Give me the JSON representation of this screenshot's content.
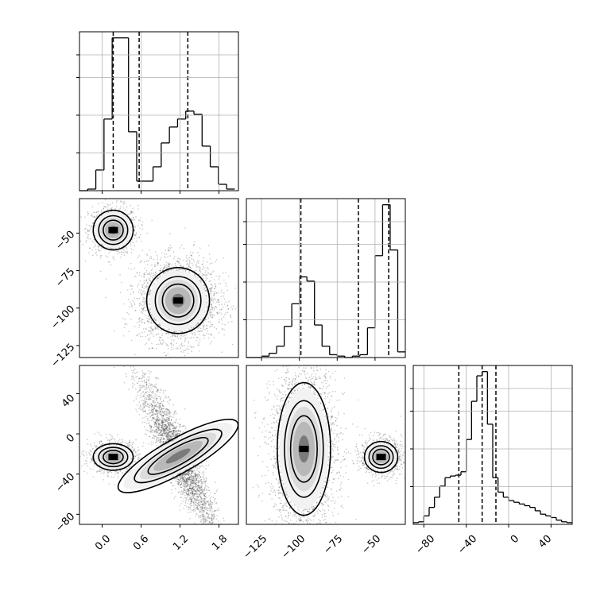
{
  "chart_data": [
    {
      "panel": "hist-p1",
      "type": "histogram",
      "row": 0,
      "col": 0,
      "xlim": [
        -0.35,
        2.1
      ],
      "bin_edges": [
        -0.35,
        -0.224,
        -0.098,
        0.028,
        0.154,
        0.28,
        0.406,
        0.532,
        0.658,
        0.784,
        0.91,
        1.036,
        1.162,
        1.288,
        1.414,
        1.54,
        1.666,
        1.792,
        1.918,
        2.044
      ],
      "counts": [
        0,
        1,
        13,
        45,
        96,
        96,
        37,
        6,
        6,
        15,
        30,
        40,
        45,
        50,
        48,
        28,
        15,
        4,
        1
      ],
      "quantile_lines": [
        0.17,
        0.57,
        1.32
      ],
      "grid": true
    },
    {
      "panel": "hist-p2",
      "type": "histogram",
      "row": 1,
      "col": 1,
      "xlim": [
        -135,
        -30
      ],
      "bin_edges": [
        -135,
        -130,
        -125,
        -120,
        -115,
        -110,
        -105,
        -100,
        -95,
        -90,
        -85,
        -80,
        -75,
        -70,
        -65,
        -60,
        -55,
        -50,
        -45,
        -40,
        -35,
        -30
      ],
      "counts": [
        0,
        0,
        1,
        3,
        8,
        22,
        38,
        57,
        54,
        23,
        8,
        2,
        1,
        0,
        1,
        2,
        21,
        72,
        108,
        76,
        4
      ],
      "quantile_lines": [
        -99,
        -61,
        -41
      ],
      "grid": true,
      "xticks": [
        -125,
        -100,
        -75,
        -50
      ]
    },
    {
      "panel": "hist-p3",
      "type": "histogram",
      "row": 2,
      "col": 2,
      "xlim": [
        -90,
        60
      ],
      "bin_edges": [
        -90,
        -85,
        -80,
        -75,
        -70,
        -65,
        -60,
        -55,
        -50,
        -45,
        -40,
        -35,
        -30,
        -25,
        -20,
        -15,
        -10,
        -5,
        0,
        5,
        10,
        15,
        20,
        25,
        30,
        35,
        40,
        45,
        50,
        55,
        60
      ],
      "counts": [
        2,
        3,
        10,
        20,
        32,
        45,
        55,
        57,
        58,
        62,
        100,
        145,
        175,
        180,
        118,
        55,
        38,
        32,
        28,
        26,
        24,
        22,
        20,
        16,
        12,
        10,
        8,
        5,
        3,
        2
      ],
      "quantile_lines": [
        -47,
        -25,
        -12
      ],
      "grid": true,
      "xticks": [
        -80,
        -40,
        0,
        40
      ]
    },
    {
      "panel": "scatter-p1-p2",
      "type": "scatter_contour",
      "row": 1,
      "col": 0,
      "xlim": [
        -0.35,
        2.1
      ],
      "ylim": [
        -133,
        -27
      ],
      "clusters": [
        {
          "center": [
            0.17,
            -48
          ],
          "spread": [
            0.14,
            6
          ],
          "count": 900
        },
        {
          "center": [
            1.17,
            -95
          ],
          "spread": [
            0.22,
            10
          ],
          "count": 3000
        }
      ],
      "yticks": [
        -125,
        -100,
        -75,
        -50
      ]
    },
    {
      "panel": "scatter-p1-p3",
      "type": "scatter_contour",
      "row": 2,
      "col": 0,
      "xlim": [
        -0.35,
        2.1
      ],
      "ylim": [
        -90,
        68
      ],
      "clusters": [
        {
          "center": [
            0.17,
            -23
          ],
          "spread": [
            0.14,
            6
          ],
          "count": 900
        },
        {
          "center": [
            1.17,
            -22
          ],
          "spread": [
            0.22,
            28
          ],
          "corr": -0.9,
          "count": 3000
        }
      ],
      "yticks": [
        -80,
        -40,
        0,
        40
      ],
      "xticks": [
        0.0,
        0.6,
        1.2,
        1.8
      ]
    },
    {
      "panel": "scatter-p2-p3",
      "type": "scatter_contour",
      "row": 2,
      "col": 1,
      "xlim": [
        -135,
        -30
      ],
      "ylim": [
        -90,
        68
      ],
      "clusters": [
        {
          "center": [
            -97,
            -15
          ],
          "spread": [
            8,
            30
          ],
          "count": 3000
        },
        {
          "center": [
            -46,
            -23
          ],
          "spread": [
            5,
            7
          ],
          "count": 900
        }
      ]
    }
  ],
  "tick_labels": {
    "col0_x": [
      "0.0",
      "0.6",
      "1.2",
      "1.8"
    ],
    "col1_x": [
      "−125",
      "−100",
      "−75",
      "−50"
    ],
    "col2_x": [
      "−80",
      "−40",
      "0",
      "40"
    ],
    "row1_y": [
      "−50",
      "−75",
      "−100",
      "−125"
    ],
    "row2_y": [
      "40",
      "0",
      "−40",
      "−80"
    ]
  },
  "colors": {
    "points": "#000000",
    "contour": "#000000",
    "grid": "#b0b0b0"
  }
}
